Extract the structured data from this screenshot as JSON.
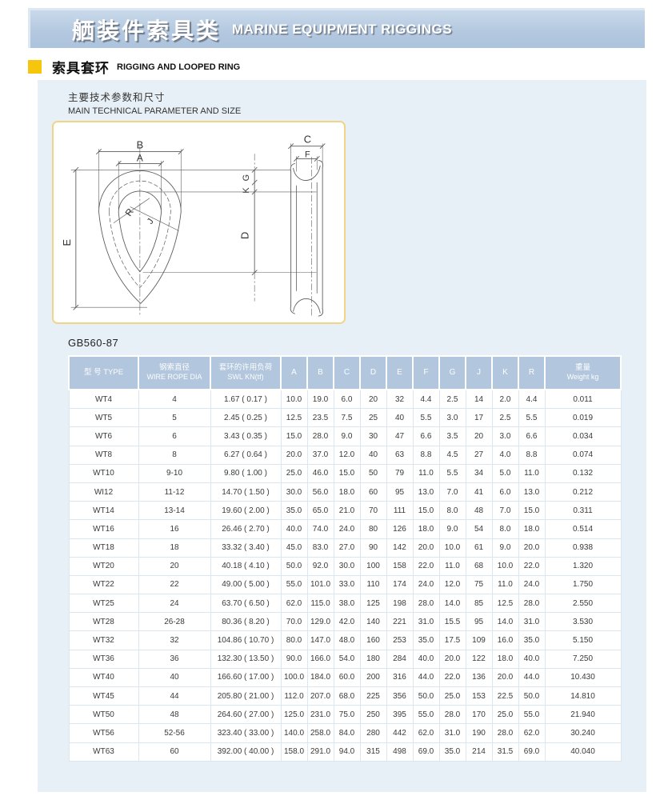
{
  "banner": {
    "title_zh": "舾装件索具类",
    "title_en": "MARINE EQUIPMENT RIGGINGS"
  },
  "section": {
    "title_zh": "索具套环",
    "title_en": "RIGGING AND LOOPED RING"
  },
  "params_heading": {
    "zh": "主要技术参数和尺寸",
    "en": "MAIN TECHNICAL PARAMETER AND SIZE"
  },
  "standard_code": "GB560-87",
  "colors": {
    "banner_bg": "#b4c9e0",
    "panel_bg": "#e8f0f7",
    "accent_yellow": "#f6c60d",
    "table_header_bg": "#b2c7dd",
    "diagram_border": "#f0d488"
  },
  "diagram": {
    "labels": {
      "A": "A",
      "B": "B",
      "C": "C",
      "D": "D",
      "E": "E",
      "F": "F",
      "G": "G",
      "J": "J",
      "K": "K",
      "R": "R"
    }
  },
  "table": {
    "columns": [
      {
        "zh": "型 号",
        "en": "TYPE",
        "two_line": false
      },
      {
        "zh": "钢索直径",
        "en": "WIRE ROPE DIA",
        "two_line": true
      },
      {
        "zh": "套环的许用负荷",
        "en": "SWL KN(tf)",
        "two_line": true
      },
      {
        "en": "A"
      },
      {
        "en": "B"
      },
      {
        "en": "C"
      },
      {
        "en": "D"
      },
      {
        "en": "E"
      },
      {
        "en": "F"
      },
      {
        "en": "G"
      },
      {
        "en": "J"
      },
      {
        "en": "K"
      },
      {
        "en": "R"
      },
      {
        "zh": "重量",
        "en": "Weight kg",
        "two_line": true
      }
    ],
    "rows": [
      [
        "WT4",
        "4",
        "1.67 ( 0.17 )",
        "10.0",
        "19.0",
        "6.0",
        "20",
        "32",
        "4.4",
        "2.5",
        "14",
        "2.0",
        "4.4",
        "0.011"
      ],
      [
        "WT5",
        "5",
        "2.45 ( 0.25 )",
        "12.5",
        "23.5",
        "7.5",
        "25",
        "40",
        "5.5",
        "3.0",
        "17",
        "2.5",
        "5.5",
        "0.019"
      ],
      [
        "WT6",
        "6",
        "3.43 ( 0.35 )",
        "15.0",
        "28.0",
        "9.0",
        "30",
        "47",
        "6.6",
        "3.5",
        "20",
        "3.0",
        "6.6",
        "0.034"
      ],
      [
        "WT8",
        "8",
        "6.27 ( 0.64 )",
        "20.0",
        "37.0",
        "12.0",
        "40",
        "63",
        "8.8",
        "4.5",
        "27",
        "4.0",
        "8.8",
        "0.074"
      ],
      [
        "WT10",
        "9-10",
        "9.80 ( 1.00 )",
        "25.0",
        "46.0",
        "15.0",
        "50",
        "79",
        "11.0",
        "5.5",
        "34",
        "5.0",
        "11.0",
        "0.132"
      ],
      [
        "WI12",
        "11-12",
        "14.70 ( 1.50 )",
        "30.0",
        "56.0",
        "18.0",
        "60",
        "95",
        "13.0",
        "7.0",
        "41",
        "6.0",
        "13.0",
        "0.212"
      ],
      [
        "WT14",
        "13-14",
        "19.60 ( 2.00 )",
        "35.0",
        "65.0",
        "21.0",
        "70",
        "111",
        "15.0",
        "8.0",
        "48",
        "7.0",
        "15.0",
        "0.311"
      ],
      [
        "WT16",
        "16",
        "26.46 ( 2.70 )",
        "40.0",
        "74.0",
        "24.0",
        "80",
        "126",
        "18.0",
        "9.0",
        "54",
        "8.0",
        "18.0",
        "0.514"
      ],
      [
        "WT18",
        "18",
        "33.32 ( 3.40 )",
        "45.0",
        "83.0",
        "27.0",
        "90",
        "142",
        "20.0",
        "10.0",
        "61",
        "9.0",
        "20.0",
        "0.938"
      ],
      [
        "WT20",
        "20",
        "40.18 ( 4.10 )",
        "50.0",
        "92.0",
        "30.0",
        "100",
        "158",
        "22.0",
        "11.0",
        "68",
        "10.0",
        "22.0",
        "1.320"
      ],
      [
        "WT22",
        "22",
        "49.00 ( 5.00 )",
        "55.0",
        "101.0",
        "33.0",
        "110",
        "174",
        "24.0",
        "12.0",
        "75",
        "11.0",
        "24.0",
        "1.750"
      ],
      [
        "WT25",
        "24",
        "63.70 ( 6.50 )",
        "62.0",
        "115.0",
        "38.0",
        "125",
        "198",
        "28.0",
        "14.0",
        "85",
        "12.5",
        "28.0",
        "2.550"
      ],
      [
        "WT28",
        "26-28",
        "80.36 ( 8.20 )",
        "70.0",
        "129.0",
        "42.0",
        "140",
        "221",
        "31.0",
        "15.5",
        "95",
        "14.0",
        "31.0",
        "3.530"
      ],
      [
        "WT32",
        "32",
        "104.86 ( 10.70 )",
        "80.0",
        "147.0",
        "48.0",
        "160",
        "253",
        "35.0",
        "17.5",
        "109",
        "16.0",
        "35.0",
        "5.150"
      ],
      [
        "WT36",
        "36",
        "132.30 ( 13.50 )",
        "90.0",
        "166.0",
        "54.0",
        "180",
        "284",
        "40.0",
        "20.0",
        "122",
        "18.0",
        "40.0",
        "7.250"
      ],
      [
        "WT40",
        "40",
        "166.60 ( 17.00 )",
        "100.0",
        "184.0",
        "60.0",
        "200",
        "316",
        "44.0",
        "22.0",
        "136",
        "20.0",
        "44.0",
        "10.430"
      ],
      [
        "WT45",
        "44",
        "205.80 ( 21.00 )",
        "112.0",
        "207.0",
        "68.0",
        "225",
        "356",
        "50.0",
        "25.0",
        "153",
        "22.5",
        "50.0",
        "14.810"
      ],
      [
        "WT50",
        "48",
        "264.60 ( 27.00 )",
        "125.0",
        "231.0",
        "75.0",
        "250",
        "395",
        "55.0",
        "28.0",
        "170",
        "25.0",
        "55.0",
        "21.940"
      ],
      [
        "WT56",
        "52-56",
        "323.40 ( 33.00 )",
        "140.0",
        "258.0",
        "84.0",
        "280",
        "442",
        "62.0",
        "31.0",
        "190",
        "28.0",
        "62.0",
        "30.240"
      ],
      [
        "WT63",
        "60",
        "392.00 ( 40.00 )",
        "158.0",
        "291.0",
        "94.0",
        "315",
        "498",
        "69.0",
        "35.0",
        "214",
        "31.5",
        "69.0",
        "40.040"
      ]
    ]
  }
}
